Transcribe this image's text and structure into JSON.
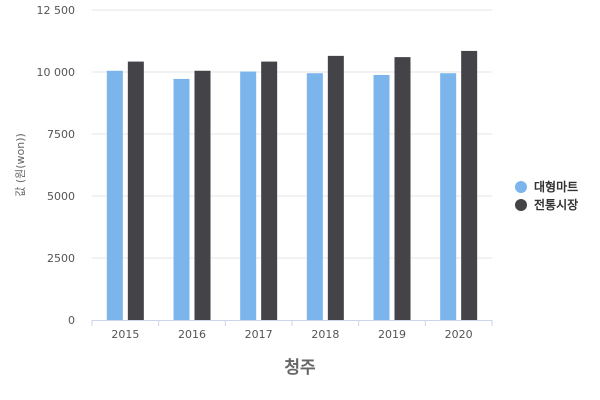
{
  "chart_data": {
    "type": "bar",
    "title": "",
    "xlabel": "청주",
    "ylabel": "값 (원(won))",
    "categories": [
      "2015",
      "2016",
      "2017",
      "2018",
      "2019",
      "2020"
    ],
    "ylim": [
      0,
      12500
    ],
    "yticks": [
      0,
      2500,
      5000,
      7500,
      10000,
      12500
    ],
    "ytick_labels": [
      "0",
      "2500",
      "5000",
      "7500",
      "10 000",
      "12 500"
    ],
    "grid": true,
    "legend_position": "right",
    "series": [
      {
        "name": "대형마트",
        "color": "#7cb5ec",
        "values": [
          10050,
          9720,
          10020,
          9950,
          9880,
          9950
        ]
      },
      {
        "name": "전통시장",
        "color": "#434348",
        "values": [
          10420,
          10050,
          10420,
          10650,
          10600,
          10850
        ]
      }
    ]
  }
}
